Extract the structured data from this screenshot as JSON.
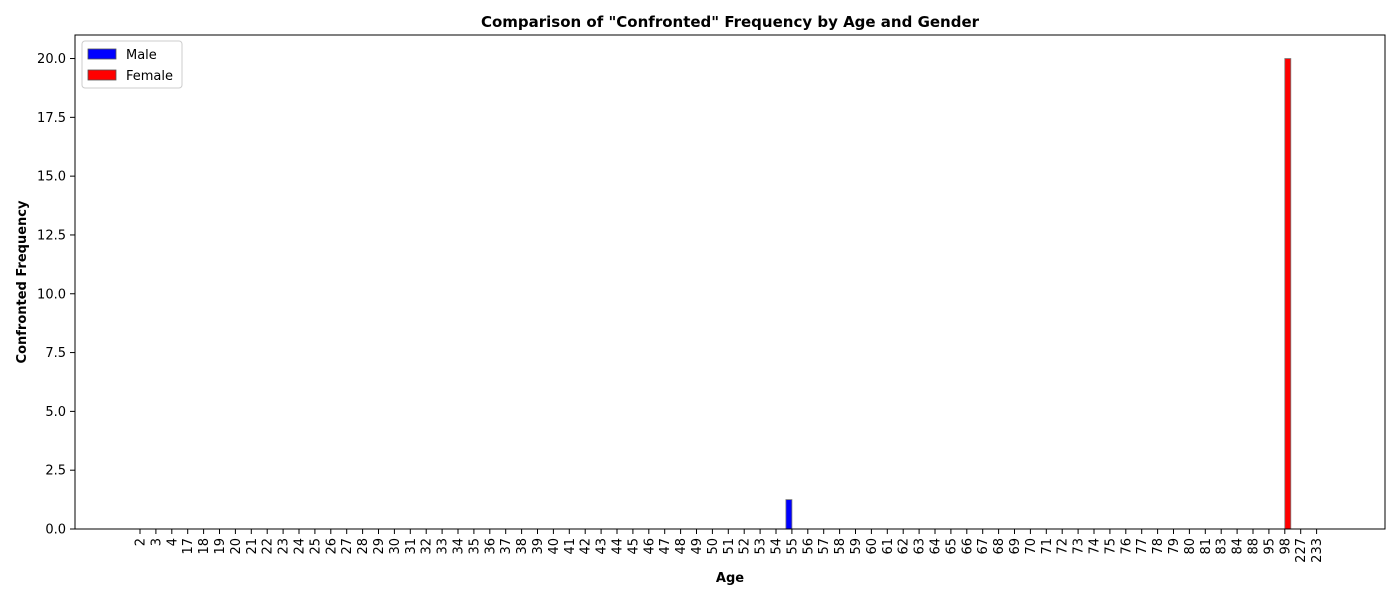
{
  "chart_data": {
    "type": "bar",
    "title": "Comparison of \"Confronted\" Frequency by Age and Gender",
    "xlabel": "Age",
    "ylabel": "Confronted Frequency",
    "categories": [
      "2",
      "3",
      "4",
      "17",
      "18",
      "19",
      "20",
      "21",
      "22",
      "23",
      "24",
      "25",
      "26",
      "27",
      "28",
      "29",
      "30",
      "31",
      "32",
      "33",
      "34",
      "35",
      "36",
      "37",
      "38",
      "39",
      "40",
      "41",
      "42",
      "43",
      "44",
      "45",
      "46",
      "47",
      "48",
      "49",
      "50",
      "51",
      "52",
      "53",
      "54",
      "55",
      "56",
      "57",
      "58",
      "59",
      "60",
      "61",
      "62",
      "63",
      "64",
      "65",
      "66",
      "67",
      "68",
      "69",
      "70",
      "71",
      "72",
      "73",
      "74",
      "75",
      "76",
      "77",
      "78",
      "79",
      "80",
      "81",
      "83",
      "84",
      "88",
      "95",
      "98",
      "227",
      "233"
    ],
    "series": [
      {
        "name": "Male",
        "color": "#0000ff",
        "values": [
          0,
          0,
          0,
          0,
          0,
          0,
          0,
          0,
          0,
          0,
          0,
          0,
          0,
          0,
          0,
          0,
          0,
          0,
          0,
          0,
          0,
          0,
          0,
          0,
          0,
          0,
          0,
          0,
          0,
          0,
          0,
          0,
          0,
          0,
          0,
          0,
          0,
          0,
          0,
          0,
          0,
          1.25,
          0,
          0,
          0,
          0,
          0,
          0,
          0,
          0,
          0,
          0,
          0,
          0,
          0,
          0,
          0,
          0,
          0,
          0,
          0,
          0,
          0,
          0,
          0,
          0,
          0,
          0,
          0,
          0,
          0,
          0,
          0,
          0,
          0
        ]
      },
      {
        "name": "Female",
        "color": "#ff0000",
        "values": [
          0,
          0,
          0,
          0,
          0,
          0,
          0,
          0,
          0,
          0,
          0,
          0,
          0,
          0,
          0,
          0,
          0,
          0,
          0,
          0,
          0,
          0,
          0,
          0,
          0,
          0,
          0,
          0,
          0,
          0,
          0,
          0,
          0,
          0,
          0,
          0,
          0,
          0,
          0,
          0,
          0,
          0,
          0,
          0,
          0,
          0,
          0,
          0,
          0,
          0,
          0,
          0,
          0,
          0,
          0,
          0,
          0,
          0,
          0,
          0,
          0,
          0,
          0,
          0,
          0,
          0,
          0,
          0,
          0,
          0,
          0,
          0,
          20,
          0,
          0
        ]
      }
    ],
    "ylim": [
      0,
      21
    ],
    "yticks": [
      0.0,
      2.5,
      5.0,
      7.5,
      10.0,
      12.5,
      15.0,
      17.5,
      20.0
    ],
    "ytick_labels": [
      "0.0",
      "2.5",
      "5.0",
      "7.5",
      "10.0",
      "12.5",
      "15.0",
      "17.5",
      "20.0"
    ],
    "grid": false,
    "legend_position": "top-left"
  }
}
